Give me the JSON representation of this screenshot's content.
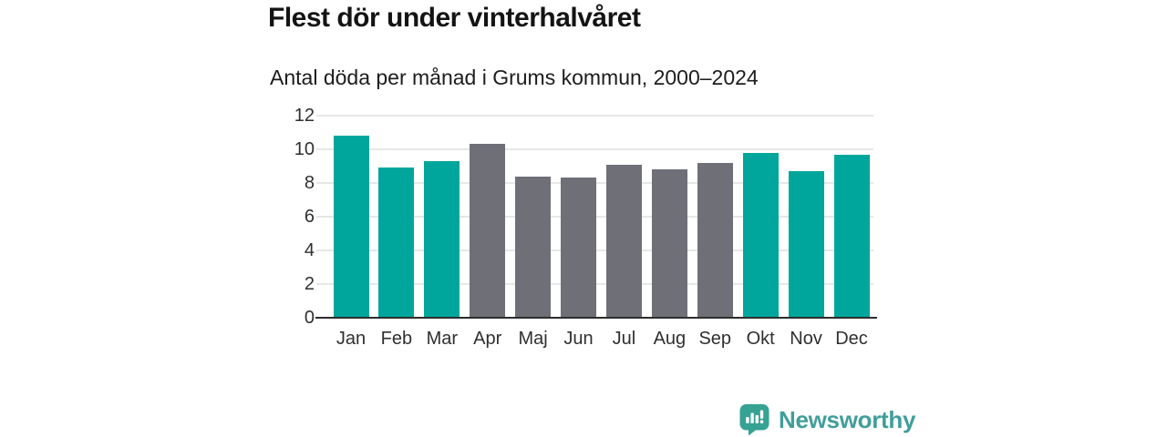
{
  "header": {
    "title": "Flest dör under vinterhalvåret",
    "subtitle": "Antal döda per månad i Grums kommun, 2000–2024"
  },
  "chart_data": {
    "type": "bar",
    "title": "Flest dör under vinterhalvåret",
    "subtitle": "Antal döda per månad i Grums kommun, 2000–2024",
    "categories": [
      "Jan",
      "Feb",
      "Mar",
      "Apr",
      "Maj",
      "Jun",
      "Jul",
      "Aug",
      "Sep",
      "Okt",
      "Nov",
      "Dec"
    ],
    "values": [
      10.8,
      8.9,
      9.3,
      10.3,
      8.4,
      8.3,
      9.1,
      8.8,
      9.2,
      9.8,
      8.7,
      9.7
    ],
    "colors": [
      "#00a69b",
      "#00a69b",
      "#00a69b",
      "#6f6f78",
      "#6f6f78",
      "#6f6f78",
      "#6f6f78",
      "#6f6f78",
      "#6f6f78",
      "#00a69b",
      "#00a69b",
      "#00a69b"
    ],
    "highlight_color": "#00a69b",
    "muted_color": "#6f6f78",
    "xlabel": "",
    "ylabel": "",
    "ylim": [
      0,
      12
    ],
    "yticks": [
      0,
      2,
      4,
      6,
      8,
      10,
      12
    ],
    "grid": true,
    "legend": "none"
  },
  "footer": {
    "brand": "Newsworthy",
    "logo_icon": "bar-chart-speech-bubble-icon",
    "brand_text_color": "#419e99",
    "logo_color": "#35a293"
  }
}
